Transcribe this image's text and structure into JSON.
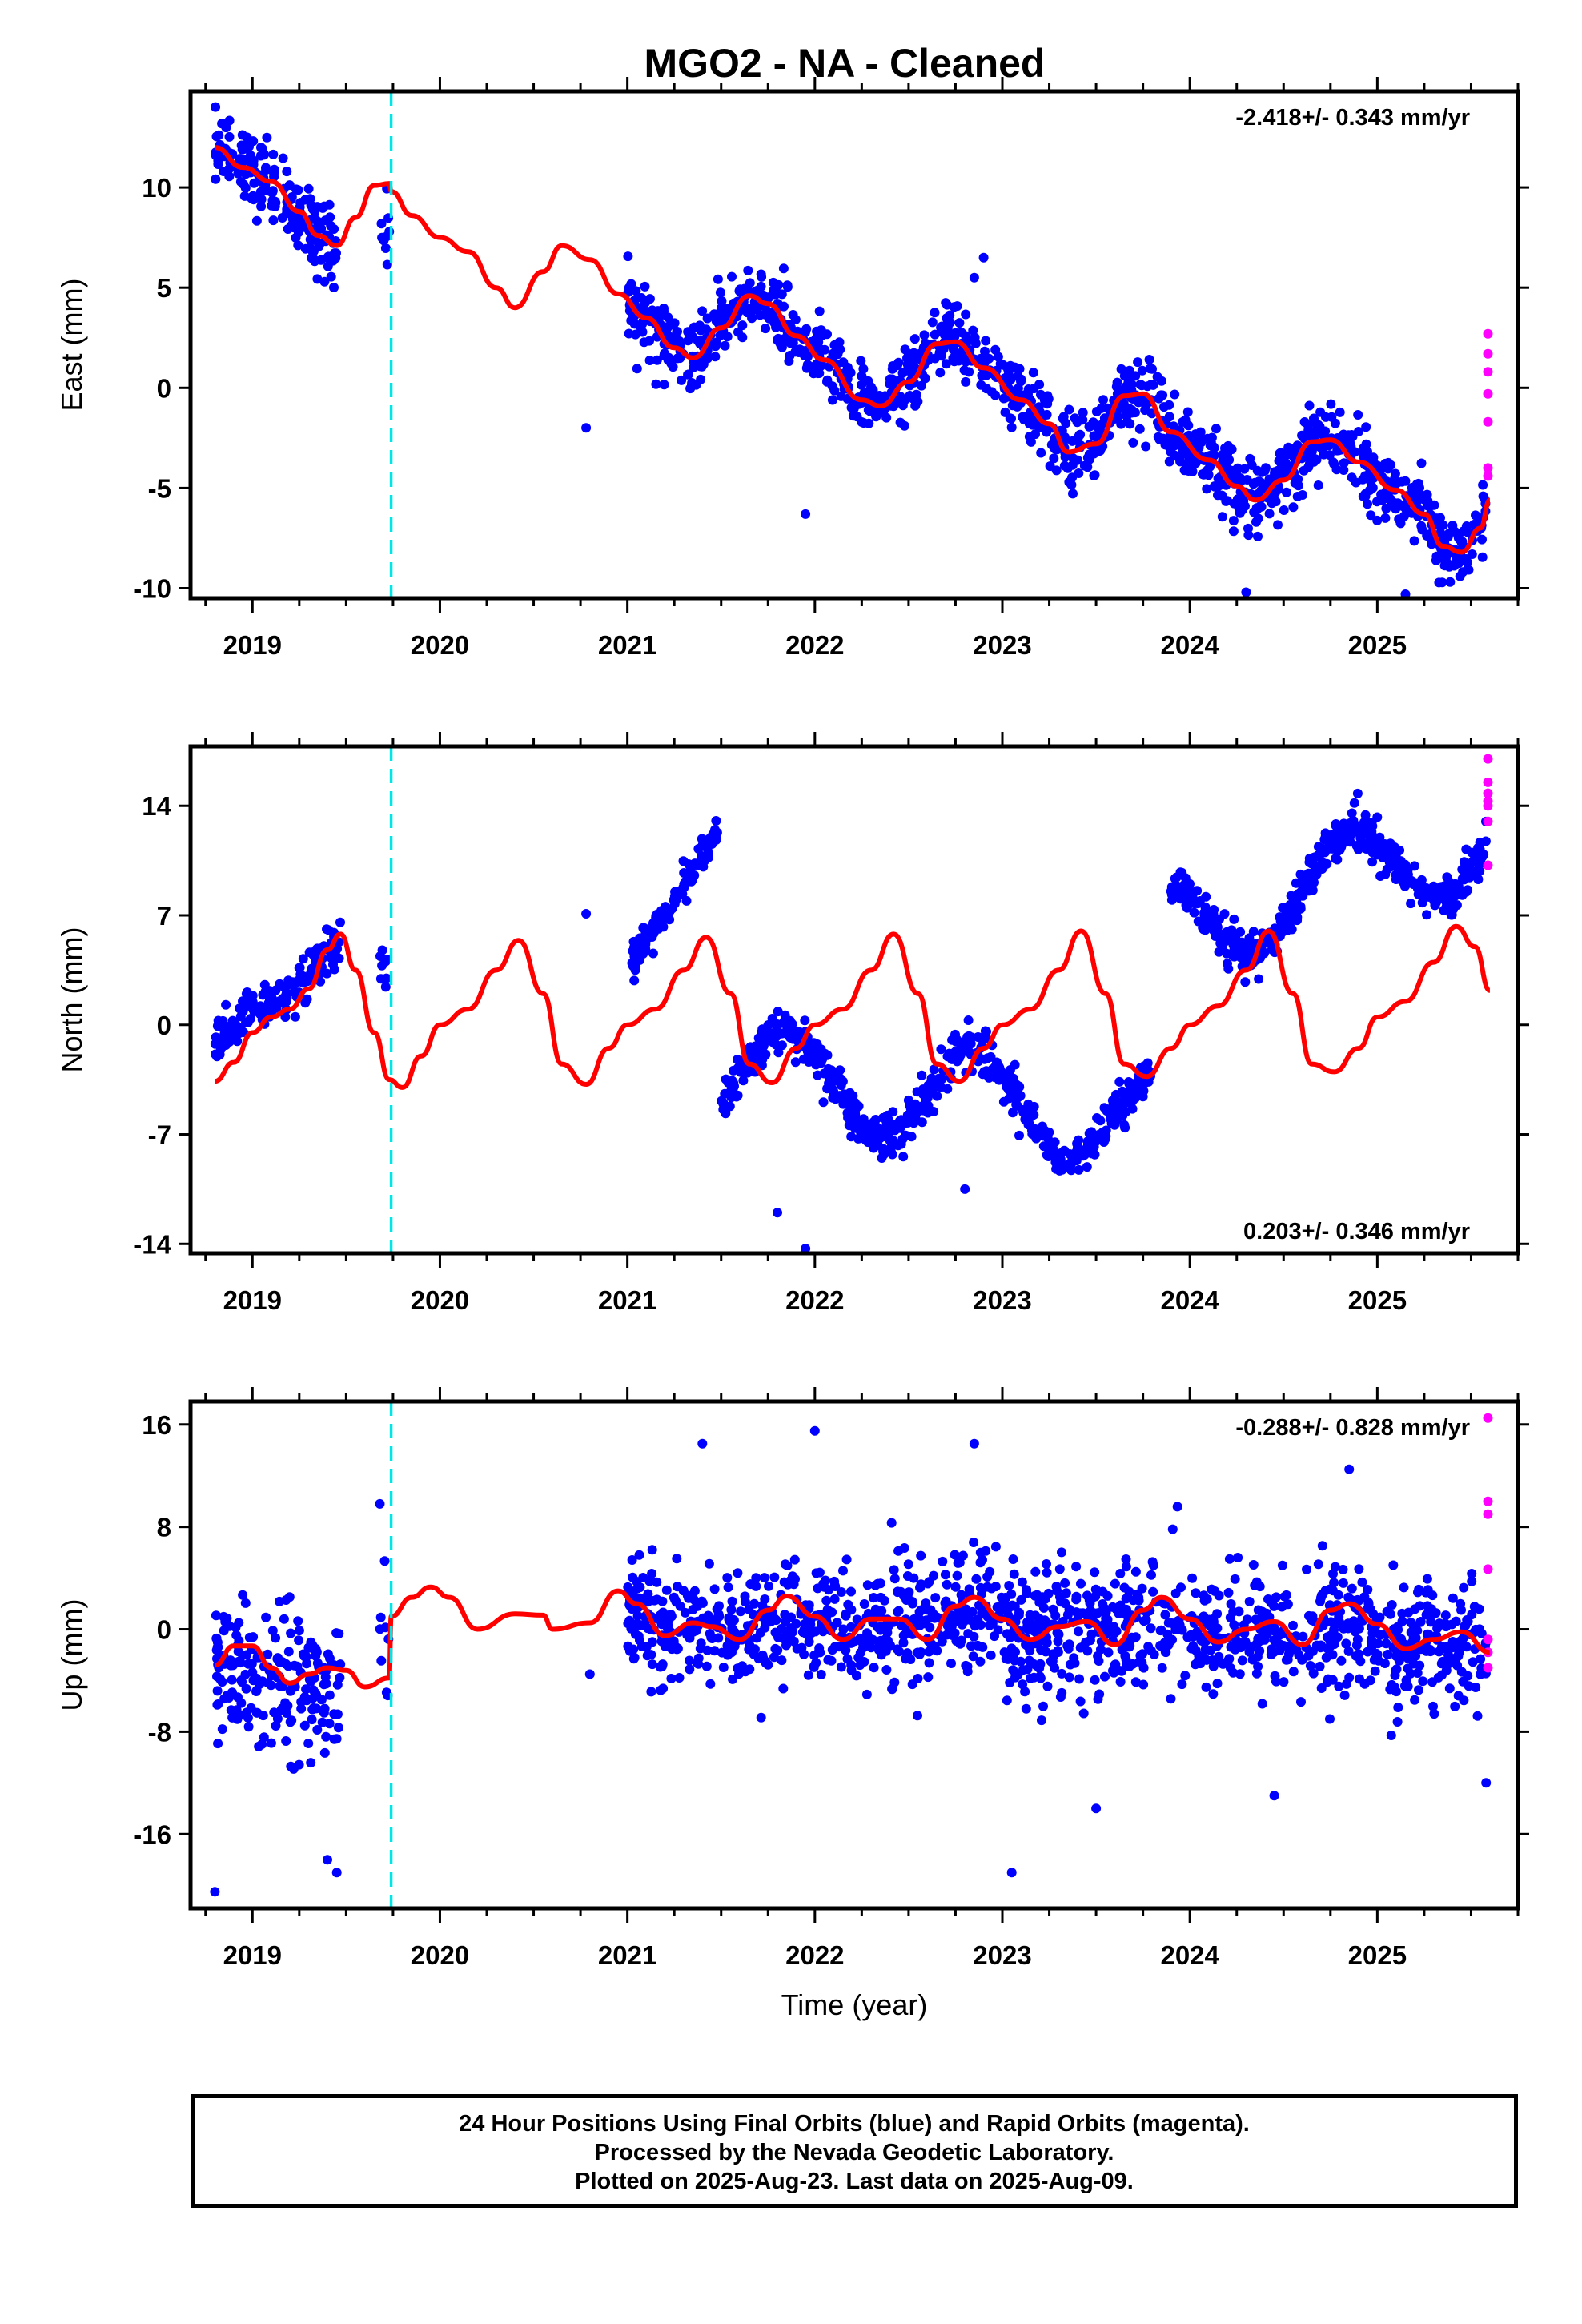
{
  "title": "MGO2  - NA - Cleaned",
  "colors": {
    "final_orbits": "#0000ff",
    "rapid_orbits": "#ff00ff",
    "model_fit": "#ff0000",
    "event_line": "#00e5e5",
    "frame": "#000000"
  },
  "footer": {
    "line1": "24 Hour Positions Using Final Orbits (blue) and Rapid Orbits (magenta).",
    "line2": "Processed by the Nevada Geodetic Laboratory.",
    "line3": "Plotted on 2025-Aug-23. Last data on 2025-Aug-09."
  },
  "chart_data": [
    {
      "type": "scatter",
      "panel": "east",
      "ylabel": "East (mm)",
      "xlabel": "",
      "xlim": [
        2018.67,
        2025.75
      ],
      "ylim": [
        -10.5,
        14.8
      ],
      "yticks": [
        10,
        5,
        0,
        -5,
        -10
      ],
      "yticklabels": [
        "10",
        "5",
        "0",
        "-5",
        "-10"
      ],
      "xticks": [
        2019,
        2020,
        2021,
        2022,
        2023,
        2024,
        2025
      ],
      "xticklabels": [
        "2019",
        "2020",
        "2021",
        "2022",
        "2023",
        "2024",
        "2025"
      ],
      "grid": false,
      "rate": "-2.418+/- 0.343 mm/yr",
      "rate_position": "top-right",
      "event_lines": [
        2019.74
      ],
      "model": {
        "name": "",
        "x": [
          2018.8,
          2018.95,
          2019.1,
          2019.25,
          2019.35,
          2019.45,
          2019.55,
          2019.65,
          2019.73,
          2019.74,
          2019.85,
          2020.0,
          2020.15,
          2020.3,
          2020.4,
          2020.55,
          2020.65,
          2020.8,
          2020.95,
          2021.1,
          2021.25,
          2021.35,
          2021.5,
          2021.65,
          2021.75,
          2021.9,
          2022.05,
          2022.25,
          2022.35,
          2022.5,
          2022.65,
          2022.75,
          2022.9,
          2023.1,
          2023.25,
          2023.35,
          2023.5,
          2023.65,
          2023.75,
          2023.9,
          2024.1,
          2024.25,
          2024.35,
          2024.5,
          2024.65,
          2024.75,
          2024.9,
          2025.1,
          2025.25,
          2025.35,
          2025.45,
          2025.55,
          2025.6
        ],
        "y": [
          12.0,
          11.0,
          10.3,
          8.8,
          7.6,
          7.1,
          8.5,
          10.1,
          10.2,
          9.8,
          8.6,
          7.5,
          6.8,
          5.0,
          4.0,
          5.8,
          7.1,
          6.4,
          4.7,
          3.5,
          2.0,
          1.5,
          3.0,
          4.6,
          4.2,
          2.6,
          1.4,
          -0.6,
          -0.9,
          0.3,
          2.2,
          2.3,
          1.0,
          -0.6,
          -1.8,
          -3.2,
          -2.8,
          -0.4,
          -0.3,
          -2.2,
          -3.6,
          -4.9,
          -5.6,
          -4.6,
          -2.7,
          -2.6,
          -3.7,
          -5.1,
          -6.3,
          -7.9,
          -8.2,
          -7.0,
          -5.6
        ]
      },
      "final_segments": [
        {
          "x": [
            2018.8,
            2019.45
          ],
          "base": [
            12.3,
            7.0
          ],
          "spread": 1.6,
          "n": 180,
          "seasonal": 1.2
        },
        {
          "x": [
            2019.68,
            2019.73
          ],
          "base": [
            7.5,
            8.0
          ],
          "spread": 1.6,
          "n": 10,
          "seasonal": 0
        },
        {
          "x": [
            2021.0,
            2025.58
          ],
          "base": [
            4.3,
            -6.5
          ],
          "spread": 1.4,
          "n": 1300,
          "seasonal": 2.8
        }
      ],
      "final_extra": [
        {
          "x": 2020.78,
          "y": -2.0
        },
        {
          "x": 2021.95,
          "y": -6.3
        },
        {
          "x": 2022.9,
          "y": 6.5
        },
        {
          "x": 2022.85,
          "y": 5.5
        },
        {
          "x": 2024.3,
          "y": -10.2
        },
        {
          "x": 2025.15,
          "y": -10.3
        }
      ],
      "rapid": {
        "x": [
          2025.59,
          2025.59,
          2025.59,
          2025.59,
          2025.59,
          2025.59,
          2025.59
        ],
        "y": [
          2.7,
          1.7,
          0.8,
          -0.3,
          -1.7,
          -4.0,
          -4.4
        ]
      }
    },
    {
      "type": "scatter",
      "panel": "north",
      "ylabel": "North (mm)",
      "xlabel": "",
      "xlim": [
        2018.67,
        2025.75
      ],
      "ylim": [
        -14.6,
        17.8
      ],
      "yticks": [
        14,
        7,
        0,
        -7,
        -14
      ],
      "yticklabels": [
        "14",
        "7",
        "0",
        "-7",
        "-14"
      ],
      "xticks": [
        2019,
        2020,
        2021,
        2022,
        2023,
        2024,
        2025
      ],
      "xticklabels": [
        "2019",
        "2020",
        "2021",
        "2022",
        "2023",
        "2024",
        "2025"
      ],
      "grid": false,
      "rate": "0.203+/- 0.346 mm/yr",
      "rate_position": "bottom-right",
      "event_lines": [
        2019.74
      ],
      "model": {
        "name": "",
        "x": [
          2018.8,
          2018.9,
          2019.0,
          2019.1,
          2019.2,
          2019.3,
          2019.4,
          2019.47,
          2019.55,
          2019.65,
          2019.73,
          2019.8,
          2019.9,
          2020.0,
          2020.15,
          2020.3,
          2020.42,
          2020.55,
          2020.65,
          2020.78,
          2020.9,
          2021.0,
          2021.15,
          2021.3,
          2021.42,
          2021.55,
          2021.65,
          2021.77,
          2021.9,
          2022.0,
          2022.15,
          2022.3,
          2022.42,
          2022.55,
          2022.65,
          2022.77,
          2022.9,
          2023.0,
          2023.15,
          2023.3,
          2023.42,
          2023.55,
          2023.65,
          2023.77,
          2023.9,
          2024.0,
          2024.15,
          2024.3,
          2024.42,
          2024.55,
          2024.65,
          2024.77,
          2024.9,
          2025.0,
          2025.15,
          2025.3,
          2025.42,
          2025.52,
          2025.6
        ],
        "y": [
          -3.6,
          -2.4,
          -0.5,
          0.5,
          1.0,
          2.3,
          4.8,
          5.8,
          3.5,
          -0.5,
          -3.5,
          -4.0,
          -2.0,
          0.0,
          1.0,
          3.5,
          5.4,
          2.0,
          -2.5,
          -3.8,
          -1.5,
          0.0,
          1.0,
          3.5,
          5.6,
          2.0,
          -2.5,
          -3.7,
          -1.5,
          0.0,
          1.0,
          3.5,
          5.8,
          2.0,
          -2.5,
          -3.6,
          -1.5,
          0.0,
          1.0,
          3.5,
          6.0,
          2.0,
          -2.5,
          -3.3,
          -1.5,
          0.0,
          1.2,
          3.5,
          6.0,
          2.0,
          -2.5,
          -3.0,
          -1.5,
          0.5,
          1.5,
          4.0,
          6.3,
          5.0,
          2.2
        ]
      },
      "final_segments": [
        {
          "x": [
            2018.8,
            2019.47
          ],
          "base": [
            -1.5,
            5.5
          ],
          "spread": 1.2,
          "n": 170,
          "seasonal": 0.5
        },
        {
          "x": [
            2019.68,
            2019.73
          ],
          "base": [
            3.5,
            4.0
          ],
          "spread": 1.4,
          "n": 8,
          "seasonal": 0
        },
        {
          "x": [
            2021.02,
            2021.48
          ],
          "base": [
            4.0,
            12.0
          ],
          "spread": 1.0,
          "n": 120,
          "seasonal": 0
        },
        {
          "x": [
            2021.5,
            2023.8
          ],
          "base": [
            -3.0,
            -6.0
          ],
          "spread": 1.1,
          "n": 640,
          "seasonal": 3.0
        },
        {
          "x": [
            2023.9,
            2025.58
          ],
          "base": [
            6.0,
            12.0
          ],
          "spread": 1.1,
          "n": 480,
          "seasonal": 3.0
        }
      ],
      "final_extra": [
        {
          "x": 2020.78,
          "y": 7.1
        },
        {
          "x": 2021.8,
          "y": -12.0
        },
        {
          "x": 2021.95,
          "y": -14.3
        },
        {
          "x": 2022.8,
          "y": -10.5
        }
      ],
      "rapid": {
        "x": [
          2025.59,
          2025.59,
          2025.59,
          2025.59,
          2025.59,
          2025.59,
          2025.59
        ],
        "y": [
          17.0,
          15.5,
          14.8,
          14.3,
          14.0,
          13.0,
          10.2
        ]
      }
    },
    {
      "type": "scatter",
      "panel": "up",
      "ylabel": "Up (mm)",
      "xlabel": "Time (year)",
      "xlim": [
        2018.67,
        2025.75
      ],
      "ylim": [
        -21.8,
        17.8
      ],
      "yticks": [
        16,
        8,
        0,
        -8,
        -16
      ],
      "yticklabels": [
        "16",
        "8",
        "0",
        "-8",
        "-16"
      ],
      "xticks": [
        2019,
        2020,
        2021,
        2022,
        2023,
        2024,
        2025
      ],
      "xticklabels": [
        "2019",
        "2020",
        "2021",
        "2022",
        "2023",
        "2024",
        "2025"
      ],
      "grid": false,
      "rate": "-0.288+/- 0.828 mm/yr",
      "rate_position": "top-right",
      "event_lines": [
        2019.74
      ],
      "model": {
        "name": "",
        "x": [
          2018.8,
          2018.9,
          2019.0,
          2019.1,
          2019.2,
          2019.3,
          2019.4,
          2019.5,
          2019.6,
          2019.73,
          2019.74,
          2019.85,
          2019.95,
          2020.05,
          2020.2,
          2020.4,
          2020.55,
          2020.6,
          2020.8,
          2020.95,
          2021.05,
          2021.2,
          2021.35,
          2021.45,
          2021.6,
          2021.75,
          2021.85,
          2022.0,
          2022.15,
          2022.3,
          2022.45,
          2022.6,
          2022.75,
          2022.85,
          2023.0,
          2023.15,
          2023.3,
          2023.45,
          2023.6,
          2023.75,
          2023.85,
          2024.0,
          2024.15,
          2024.3,
          2024.45,
          2024.6,
          2024.75,
          2024.85,
          2025.0,
          2025.15,
          2025.3,
          2025.45,
          2025.6
        ],
        "y": [
          -2.8,
          -1.3,
          -1.3,
          -3.0,
          -4.2,
          -3.5,
          -3.0,
          -3.2,
          -4.5,
          -3.8,
          1.0,
          2.5,
          3.3,
          2.5,
          0.0,
          1.2,
          1.1,
          0.0,
          0.5,
          3.0,
          2.0,
          -0.5,
          0.5,
          0.2,
          -0.8,
          1.5,
          2.6,
          1.0,
          -0.8,
          0.8,
          0.8,
          -0.8,
          1.8,
          2.5,
          0.8,
          -0.8,
          0.2,
          0.6,
          -1.2,
          1.5,
          2.5,
          0.8,
          -1.0,
          0.0,
          0.6,
          -1.2,
          1.5,
          2.0,
          0.4,
          -1.5,
          -0.8,
          -0.2,
          -1.8
        ]
      },
      "final_segments": [
        {
          "x": [
            2018.8,
            2019.47
          ],
          "base": [
            -3.0,
            -5.0
          ],
          "spread": 4.5,
          "n": 200,
          "seasonal": 0
        },
        {
          "x": [
            2019.68,
            2019.73
          ],
          "base": [
            -1.0,
            -1.0
          ],
          "spread": 5.0,
          "n": 8,
          "seasonal": 0
        },
        {
          "x": [
            2021.0,
            2025.58
          ],
          "base": [
            0.5,
            -1.5
          ],
          "spread": 4.0,
          "n": 1350,
          "seasonal": 1.5
        }
      ],
      "final_extra": [
        {
          "x": 2018.8,
          "y": -20.5
        },
        {
          "x": 2019.45,
          "y": -19.0
        },
        {
          "x": 2019.4,
          "y": -18.0
        },
        {
          "x": 2020.8,
          "y": -3.5
        },
        {
          "x": 2023.05,
          "y": -19.0
        },
        {
          "x": 2021.4,
          "y": 14.5
        },
        {
          "x": 2022.0,
          "y": 15.5
        },
        {
          "x": 2022.85,
          "y": 14.5
        },
        {
          "x": 2024.85,
          "y": 12.5
        },
        {
          "x": 2019.68,
          "y": 9.8
        },
        {
          "x": 2023.5,
          "y": -14.0
        },
        {
          "x": 2024.45,
          "y": -13.0
        },
        {
          "x": 2025.58,
          "y": -12.0
        }
      ],
      "rapid": {
        "x": [
          2025.59,
          2025.59,
          2025.59,
          2025.59,
          2025.59,
          2025.59,
          2025.59
        ],
        "y": [
          16.5,
          10.0,
          9.0,
          4.7,
          -0.8,
          -1.8,
          -3.0
        ]
      }
    }
  ]
}
